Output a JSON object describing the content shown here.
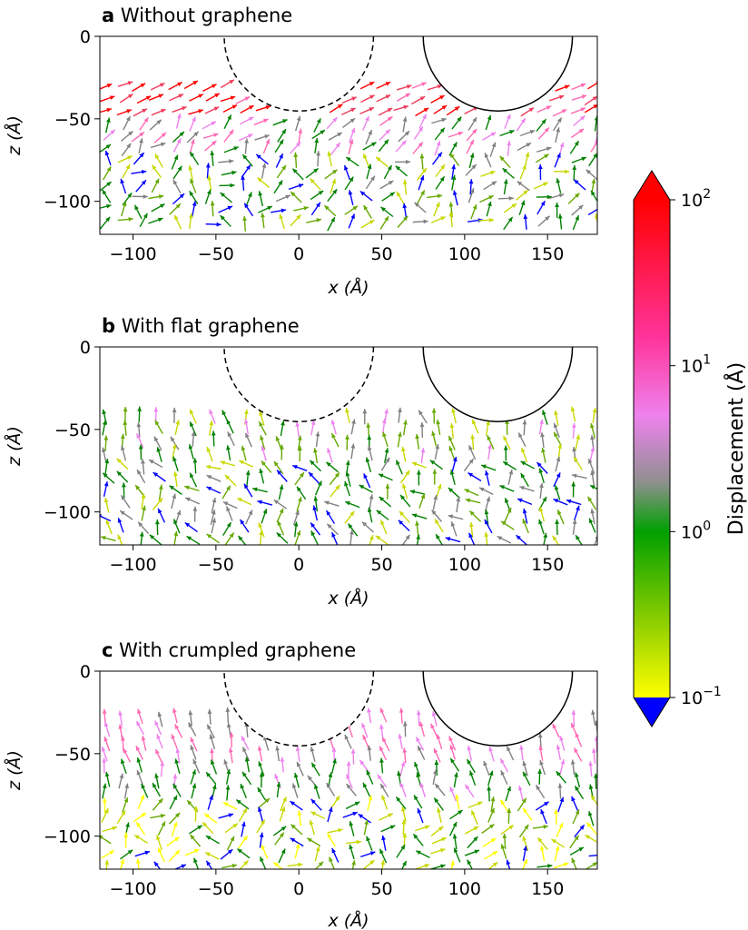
{
  "chart_data": {
    "type": "quiver",
    "panels": [
      {
        "id": "a",
        "letter": "a",
        "title": "Without graphene",
        "xlabel": "x (Å)",
        "ylabel": "z (Å)",
        "xlim": [
          -120,
          180
        ],
        "ylim": [
          -120,
          0
        ],
        "xticks": [
          "−100",
          "−50",
          "0",
          "50",
          "100",
          "150"
        ],
        "xtick_values": [
          -100,
          -50,
          0,
          50,
          100,
          150
        ],
        "yticks": [
          "0",
          "−50",
          "−100"
        ],
        "ytick_values": [
          0,
          -50,
          -100
        ],
        "circles": [
          {
            "cx": 0,
            "cz": 0,
            "r": 45,
            "style": "dashed"
          },
          {
            "cx": 120,
            "cz": 0,
            "r": 45,
            "style": "solid"
          }
        ],
        "field": {
          "z_top": -30,
          "seed": 11,
          "x_spacing": 10.5,
          "z_spacing": 7.5,
          "layers": [
            {
              "z_min": -50,
              "z_max": -30,
              "angle_deg": 25,
              "spread_deg": 18,
              "bands": [
                "red",
                "red",
                "#f03a5a",
                "hotpink"
              ]
            },
            {
              "z_min": -70,
              "z_max": -50,
              "angle_deg": 50,
              "spread_deg": 70,
              "bands": [
                "hotpink",
                "violet",
                "grey",
                "green"
              ]
            },
            {
              "z_min": -120,
              "z_max": -70,
              "angle_deg": 70,
              "spread_deg": 150,
              "bands": [
                "green",
                "green",
                "#66a800",
                "#c8d800",
                "grey",
                "blue"
              ]
            }
          ]
        }
      },
      {
        "id": "b",
        "letter": "b",
        "title": "With flat graphene",
        "xlabel": "x (Å)",
        "ylabel": "z (Å)",
        "xlim": [
          -120,
          180
        ],
        "ylim": [
          -120,
          0
        ],
        "xticks": [
          "−100",
          "−50",
          "0",
          "50",
          "100",
          "150"
        ],
        "xtick_values": [
          -100,
          -50,
          0,
          50,
          100,
          150
        ],
        "yticks": [
          "0",
          "−50",
          "−100"
        ],
        "ytick_values": [
          0,
          -50,
          -100
        ],
        "circles": [
          {
            "cx": 0,
            "cz": 0,
            "r": 45,
            "style": "dashed"
          },
          {
            "cx": 120,
            "cz": 0,
            "r": 45,
            "style": "solid"
          }
        ],
        "field": {
          "z_top": -42,
          "seed": 23,
          "x_spacing": 10.5,
          "z_spacing": 7.5,
          "layers": [
            {
              "z_min": -70,
              "z_max": -42,
              "angle_deg": 100,
              "spread_deg": 45,
              "bands": [
                "grey",
                "violet",
                "green",
                "#66a800",
                "#c8d800"
              ]
            },
            {
              "z_min": -120,
              "z_max": -70,
              "angle_deg": 110,
              "spread_deg": 120,
              "bands": [
                "green",
                "green",
                "#66a800",
                "#c8d800",
                "grey",
                "blue"
              ]
            }
          ]
        }
      },
      {
        "id": "c",
        "letter": "c",
        "title": "With crumpled graphene",
        "xlabel": "x (Å)",
        "ylabel": "z (Å)",
        "xlim": [
          -120,
          180
        ],
        "ylim": [
          -120,
          0
        ],
        "xticks": [
          "−100",
          "−50",
          "0",
          "50",
          "100",
          "150"
        ],
        "xtick_values": [
          -100,
          -50,
          0,
          50,
          100,
          150
        ],
        "yticks": [
          "0",
          "−50",
          "−100"
        ],
        "ytick_values": [
          0,
          -50,
          -100
        ],
        "circles": [
          {
            "cx": 0,
            "cz": 0,
            "r": 45,
            "style": "dashed"
          },
          {
            "cx": 120,
            "cz": 0,
            "r": 45,
            "style": "solid"
          }
        ],
        "field": {
          "z_top": -28,
          "seed": 37,
          "x_spacing": 10.5,
          "z_spacing": 7.5,
          "layers": [
            {
              "z_min": -55,
              "z_max": -28,
              "angle_deg": 105,
              "spread_deg": 30,
              "bands": [
                "hotpink",
                "hotpink",
                "violet",
                "grey"
              ]
            },
            {
              "z_min": -80,
              "z_max": -55,
              "angle_deg": 100,
              "spread_deg": 60,
              "bands": [
                "grey",
                "violet",
                "green",
                "green"
              ]
            },
            {
              "z_min": -120,
              "z_max": -80,
              "angle_deg": 80,
              "spread_deg": 150,
              "bands": [
                "green",
                "#66a800",
                "#c8d800",
                "yellow",
                "blue"
              ]
            }
          ]
        }
      }
    ],
    "colorbar": {
      "label": "Displacement (Å)",
      "scale": "log",
      "range": [
        0.1,
        100
      ],
      "extend": "both",
      "tick_values": [
        0.1,
        1,
        10,
        100
      ],
      "tick_bases": [
        "10",
        "10",
        "10",
        "10"
      ],
      "tick_exponents": [
        "−1",
        "0",
        "1",
        "2"
      ],
      "stops": [
        {
          "value": 0.1,
          "color": "#ffff00"
        },
        {
          "value": 0.3,
          "color": "#88cc00"
        },
        {
          "value": 1,
          "color": "#00a000"
        },
        {
          "value": 2,
          "color": "#909090"
        },
        {
          "value": 5,
          "color": "#ee82ee"
        },
        {
          "value": 15,
          "color": "#ff3399"
        },
        {
          "value": 100,
          "color": "#ff0000"
        }
      ],
      "under_color": "#0000ff",
      "over_color": "#ff0000"
    }
  }
}
